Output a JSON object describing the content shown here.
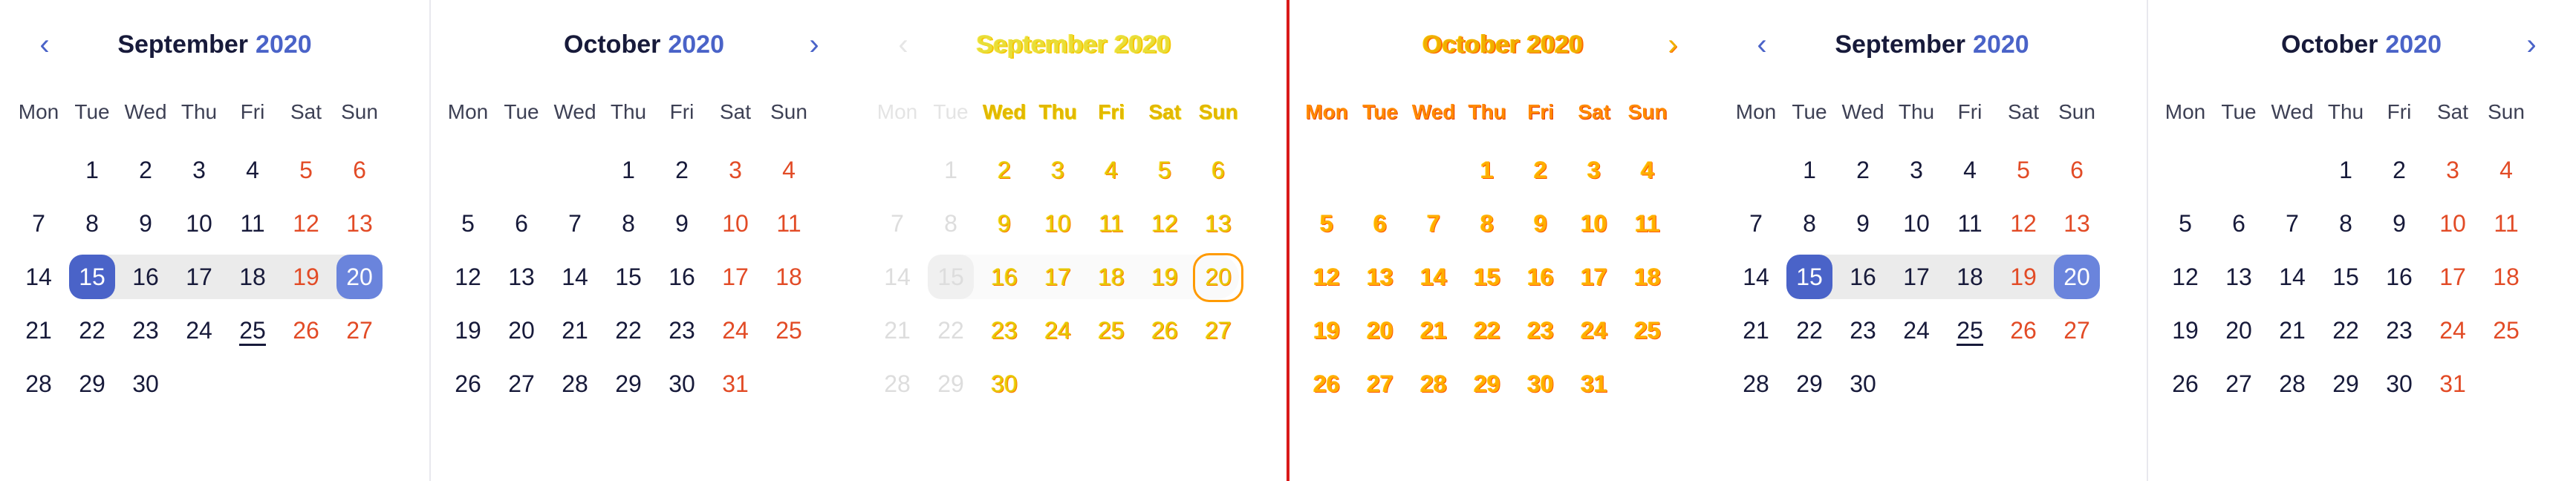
{
  "colors": {
    "accent": "#4a63c8",
    "weekend": "#e24b26",
    "range_bg": "#ebebeb",
    "error_line": "#d91a1a"
  },
  "weekdays": [
    "Mon",
    "Tue",
    "Wed",
    "Thu",
    "Fri",
    "Sat",
    "Sun"
  ],
  "nav": {
    "prev_icon": "‹",
    "next_icon": "›"
  },
  "panels": [
    {
      "month": "September",
      "year": "2020",
      "nav": "prev"
    },
    {
      "month": "October",
      "year": "2020",
      "nav": "next"
    },
    {
      "month": "September",
      "year": "2020",
      "nav": "prev",
      "variant": "ghost"
    },
    {
      "month": "October",
      "year": "2020",
      "nav": "next",
      "variant": "ghost2"
    },
    {
      "month": "September",
      "year": "2020",
      "nav": "prev"
    },
    {
      "month": "October",
      "year": "2020",
      "nav": "next"
    }
  ],
  "months": {
    "September": {
      "first_weekday_index": 1,
      "days": 30
    },
    "October": {
      "first_weekday_index": 3,
      "days": 31
    }
  },
  "selection": {
    "month": "September",
    "start": 15,
    "end": 20
  },
  "today": {
    "month": "September",
    "day": 25
  }
}
